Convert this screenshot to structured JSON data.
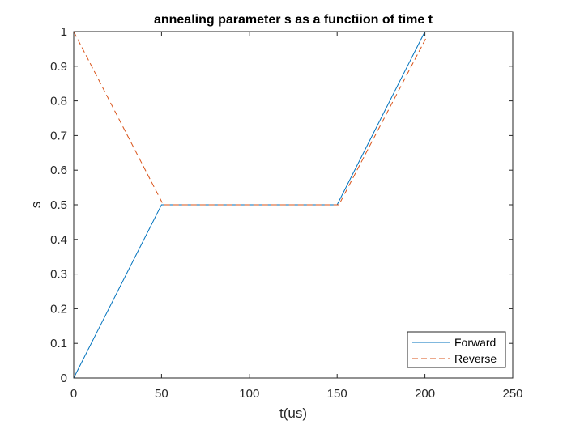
{
  "chart_data": {
    "type": "line",
    "title": "annealing parameter s as a functiion of time t",
    "xlabel": "t(us)",
    "ylabel": "s",
    "xlim": [
      0,
      250
    ],
    "ylim": [
      0,
      1
    ],
    "xticks": [
      0,
      50,
      100,
      150,
      200,
      250
    ],
    "yticks": [
      0,
      0.1,
      0.2,
      0.3,
      0.4,
      0.5,
      0.6,
      0.7,
      0.8,
      0.9,
      1
    ],
    "grid": false,
    "legend_location": "bottom-right",
    "series": [
      {
        "name": "Forward",
        "color": "#0072BD",
        "line_style": "solid",
        "x": [
          0,
          50,
          150,
          200
        ],
        "y": [
          0,
          0.5,
          0.5,
          1
        ]
      },
      {
        "name": "Reverse",
        "color": "#D95319",
        "line_style": "dashed",
        "x": [
          0,
          51,
          151,
          201
        ],
        "y": [
          1,
          0.5,
          0.5,
          0.985
        ]
      }
    ]
  }
}
